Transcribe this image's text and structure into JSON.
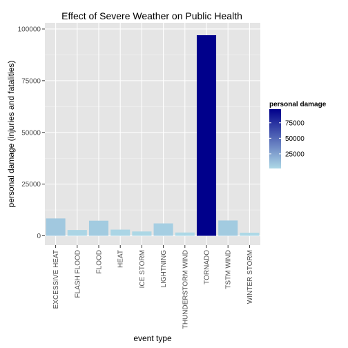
{
  "chart_data": {
    "type": "bar",
    "title": "Effect of Severe Weather on Public Health",
    "xlabel": "event type",
    "ylabel": "personal damage (injuries and fatalities)",
    "categories": [
      "EXCESSIVE HEAT",
      "FLASH FLOOD",
      "FLOOD",
      "HEAT",
      "ICE STORM",
      "LIGHTNING",
      "THUNDERSTORM WIND",
      "TORNADO",
      "TSTM WIND",
      "WINTER STORM"
    ],
    "values": [
      8400,
      2800,
      7300,
      3000,
      2100,
      6000,
      1600,
      97000,
      7400,
      1500
    ],
    "ylim": [
      -4500,
      103000
    ],
    "yticks": [
      0,
      25000,
      50000,
      75000,
      100000
    ],
    "grid": true,
    "legend": {
      "title": "personal damage",
      "position": "right",
      "ticks": [
        25000,
        50000,
        75000
      ],
      "range": [
        1500,
        97000
      ]
    },
    "colors": {
      "low": "#add8e6",
      "high": "#00008b",
      "panel": "#e5e5e5",
      "grid_major": "#ffffff",
      "grid_minor": "#f2f2f2"
    }
  }
}
